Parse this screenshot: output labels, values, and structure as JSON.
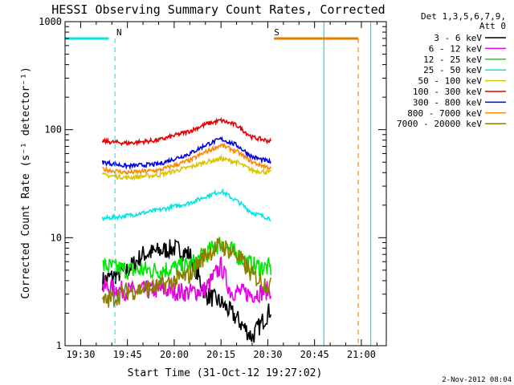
{
  "chart_data": {
    "type": "line",
    "title": "HESSI Observing Summary Count Rates, Corrected",
    "xlabel": "Start Time (31-Oct-12 19:27:02)",
    "ylabel": "Corrected Count Rate (s⁻¹ detector⁻¹)",
    "yscale": "log",
    "ylim": [
      1,
      1000
    ],
    "xlim_minutes": [
      "19:25",
      "21:08"
    ],
    "x_ticks": [
      "19:30",
      "19:45",
      "20:00",
      "20:15",
      "20:30",
      "20:45",
      "21:00"
    ],
    "y_ticks": [
      "1",
      "10",
      "100",
      "1000"
    ],
    "legend_header": [
      "Det 1,3,5,6,7,9,",
      "Att 0"
    ],
    "legend_position": "right",
    "footer": "2-Nov-2012 08:04",
    "flags": [
      {
        "label": "N",
        "color": "#00e5e5",
        "bar_x": [
          "19:25",
          "19:39"
        ],
        "marker_x": "19:41"
      },
      {
        "label": "S",
        "color": "#e87a00",
        "bar_x": [
          "20:32",
          "20:59"
        ],
        "marker_x": "20:59"
      }
    ],
    "night_boundaries": [
      "20:48",
      "21:03"
    ],
    "series": [
      {
        "name": "3 - 6 keV",
        "color": "#000000",
        "x": [
          "19:37",
          "19:45",
          "19:50",
          "20:00",
          "20:05",
          "20:10",
          "20:15",
          "20:20",
          "20:25",
          "20:31"
        ],
        "values": [
          4,
          5,
          7,
          8,
          7,
          3,
          2.5,
          1.8,
          1.2,
          2.2
        ]
      },
      {
        "name": "6 - 12 keV",
        "color": "#e600e6",
        "x": [
          "19:37",
          "19:45",
          "19:55",
          "20:05",
          "20:10",
          "20:15",
          "20:18",
          "20:25",
          "20:31"
        ],
        "values": [
          3.5,
          3.2,
          3.3,
          3.1,
          3.3,
          5.5,
          3.2,
          3.0,
          3.3
        ]
      },
      {
        "name": "12 - 25 keV",
        "color": "#00e600",
        "x": [
          "19:37",
          "19:45",
          "19:55",
          "20:05",
          "20:10",
          "20:15",
          "20:20",
          "20:25",
          "20:31"
        ],
        "values": [
          5.5,
          5.0,
          5.0,
          5.5,
          7,
          9,
          7,
          5.5,
          5.2
        ]
      },
      {
        "name": "25 - 50 keV",
        "color": "#00e5e5",
        "x": [
          "19:37",
          "19:45",
          "19:55",
          "20:05",
          "20:10",
          "20:15",
          "20:20",
          "20:25",
          "20:31"
        ],
        "values": [
          15,
          16,
          18,
          21,
          24,
          27,
          22,
          17,
          15
        ]
      },
      {
        "name": "50 - 100 keV",
        "color": "#d8c400",
        "x": [
          "19:37",
          "19:45",
          "19:55",
          "20:05",
          "20:10",
          "20:15",
          "20:20",
          "20:25",
          "20:31"
        ],
        "values": [
          38,
          36,
          38,
          45,
          50,
          54,
          50,
          42,
          40
        ]
      },
      {
        "name": "100 - 300 keV",
        "color": "#e60000",
        "x": [
          "19:37",
          "19:45",
          "19:55",
          "20:05",
          "20:10",
          "20:15",
          "20:20",
          "20:25",
          "20:31"
        ],
        "values": [
          78,
          75,
          80,
          97,
          112,
          122,
          110,
          85,
          78
        ]
      },
      {
        "name": "300 - 800 keV",
        "color": "#0000e6",
        "x": [
          "19:37",
          "19:45",
          "19:55",
          "20:05",
          "20:10",
          "20:15",
          "20:20",
          "20:25",
          "20:31"
        ],
        "values": [
          50,
          46,
          48,
          60,
          72,
          82,
          72,
          56,
          50
        ]
      },
      {
        "name": "800 - 7000 keV",
        "color": "#ff8800",
        "x": [
          "19:37",
          "19:45",
          "19:55",
          "20:05",
          "20:10",
          "20:15",
          "20:20",
          "20:25",
          "20:31"
        ],
        "values": [
          43,
          40,
          42,
          52,
          62,
          72,
          63,
          50,
          44
        ]
      },
      {
        "name": "7000 - 20000 keV",
        "color": "#8b7d00",
        "x": [
          "19:37",
          "19:45",
          "19:55",
          "20:05",
          "20:10",
          "20:15",
          "20:20",
          "20:25",
          "20:31"
        ],
        "values": [
          2.5,
          3.2,
          3.5,
          4.5,
          7,
          8.5,
          7,
          4.5,
          3.5
        ]
      }
    ]
  }
}
